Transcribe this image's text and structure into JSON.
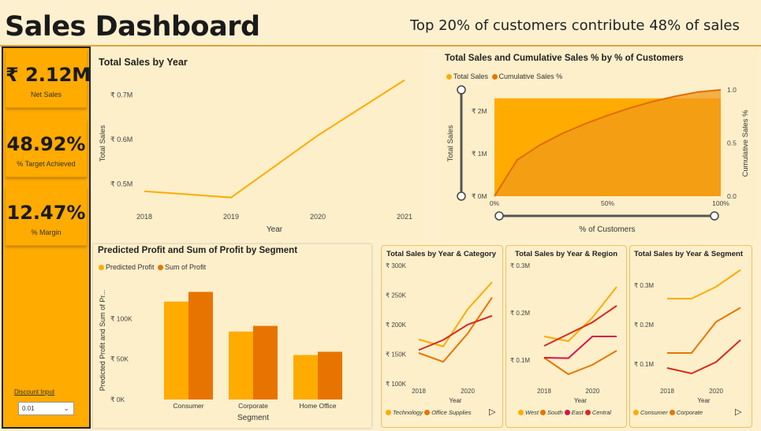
{
  "header": {
    "title": "Sales Dashboard",
    "headline": "Top 20% of customers contribute 48% of sales"
  },
  "kpis": [
    {
      "value": "₹ 2.12M",
      "label": "Net Sales"
    },
    {
      "value": "48.92%",
      "label": "% Target Achieved"
    },
    {
      "value": "12.47%",
      "label": "% Margin"
    }
  ],
  "filter": {
    "label": "Discount Input",
    "value": "0.01",
    "icon": "chevron-down-icon"
  },
  "colors": {
    "primary": "#ffab00",
    "secondary": "#e87400",
    "red": "#d62a20",
    "crimson": "#d6144a",
    "background": "#fdf0cf"
  },
  "chart_data": [
    {
      "id": "sales_by_year",
      "type": "line",
      "title": "Total Sales by Year",
      "xlabel": "Year",
      "ylabel": "Total Sales",
      "x": [
        "2018",
        "2019",
        "2020",
        "2021"
      ],
      "x_ticks": [
        "2018",
        "2019",
        "2020",
        "2021"
      ],
      "y_ticks": [
        "₹ 0.5M",
        "₹ 0.6M",
        "₹ 0.7M"
      ],
      "y_tick_values": [
        0.5,
        0.6,
        0.7
      ],
      "ylim": [
        0.45,
        0.75
      ],
      "series": [
        {
          "values": [
            0.484,
            0.47,
            0.609,
            0.733
          ]
        }
      ],
      "grid": false
    },
    {
      "id": "pareto",
      "type": "area",
      "title": "Total Sales and Cumulative Sales % by % of Customers",
      "xlabel": "% of Customers",
      "ylabel": "Total Sales",
      "y2label": "Cumulative Sales %",
      "x_ticks": [
        "0%",
        "50%",
        "100%"
      ],
      "y_ticks": [
        "₹ 0M",
        "₹ 1M",
        "₹ 2M"
      ],
      "y_tick_values": [
        0,
        1,
        2
      ],
      "y2_ticks": [
        "0.0",
        "0.5",
        "1.0"
      ],
      "ylim": [
        0,
        2.5
      ],
      "y2lim": [
        0,
        1
      ],
      "series": [
        {
          "name": "Total Sales",
          "x": [
            0,
            100
          ],
          "values": [
            2.3,
            2.3
          ]
        },
        {
          "name": "Cumulative Sales %",
          "x": [
            0,
            10,
            20,
            30,
            40,
            50,
            60,
            70,
            80,
            90,
            100
          ],
          "values": [
            0,
            0.34,
            0.48,
            0.59,
            0.68,
            0.76,
            0.83,
            0.89,
            0.94,
            0.98,
            1.0
          ]
        }
      ],
      "legend": "top-left"
    },
    {
      "id": "profit_by_segment",
      "type": "bar",
      "title": "Predicted Profit and Sum of Profit by Segment",
      "xlabel": "Segment",
      "ylabel": "Predicted Profit and Sum of Pr...",
      "categories": [
        "Consumer",
        "Corporate",
        "Home Office"
      ],
      "y_ticks": [
        "₹ 0K",
        "₹ 50K",
        "₹ 100K"
      ],
      "y_tick_values": [
        0,
        50,
        100
      ],
      "ylim": [
        0,
        150
      ],
      "series": [
        {
          "name": "Predicted Profit",
          "values": [
            121,
            84,
            55
          ]
        },
        {
          "name": "Sum of Profit",
          "values": [
            133,
            91,
            59
          ]
        }
      ],
      "legend": "top-left"
    },
    {
      "id": "sales_by_category",
      "type": "line",
      "title": "Total Sales by Year & Category",
      "xlabel": "Year",
      "x": [
        2018,
        2019,
        2020,
        2021
      ],
      "x_ticks": [
        "2018",
        "2020"
      ],
      "x_tick_values": [
        2018,
        2020
      ],
      "y_ticks": [
        "₹ 100K",
        "₹ 150K",
        "₹ 200K",
        "₹ 250K",
        "₹ 300K"
      ],
      "y_tick_values": [
        100,
        150,
        200,
        250,
        300
      ],
      "ylim": [
        100,
        300
      ],
      "series": [
        {
          "name": "Technology",
          "values": [
            175,
            163,
            226,
            272
          ]
        },
        {
          "name": "Office Supplies",
          "values": [
            152,
            137,
            185,
            246
          ]
        },
        {
          "name": "",
          "values": [
            157,
            174,
            200,
            215
          ]
        }
      ],
      "legend": "bottom"
    },
    {
      "id": "sales_by_region",
      "type": "line",
      "title": "Total Sales by Year & Region",
      "xlabel": "Year",
      "x": [
        2018,
        2019,
        2020,
        2021
      ],
      "x_ticks": [
        "2018",
        "2020"
      ],
      "x_tick_values": [
        2018,
        2020
      ],
      "y_ticks": [
        "₹ 0.1M",
        "₹ 0.2M",
        "₹ 0.3M"
      ],
      "y_tick_values": [
        0.1,
        0.2,
        0.3
      ],
      "ylim": [
        0.05,
        0.3
      ],
      "series": [
        {
          "name": "West",
          "values": [
            0.15,
            0.14,
            0.19,
            0.255
          ]
        },
        {
          "name": "South",
          "values": [
            0.105,
            0.07,
            0.09,
            0.12
          ]
        },
        {
          "name": "East",
          "values": [
            0.105,
            0.104,
            0.15,
            0.15
          ]
        },
        {
          "name": "Central",
          "values": [
            0.13,
            0.155,
            0.18,
            0.215
          ]
        }
      ],
      "legend": "bottom"
    },
    {
      "id": "sales_by_segment",
      "type": "line",
      "title": "Total Sales by Year & Segment",
      "xlabel": "Year",
      "x": [
        2018,
        2019,
        2020,
        2021
      ],
      "x_ticks": [
        "2018",
        "2020"
      ],
      "x_tick_values": [
        2018,
        2020
      ],
      "y_ticks": [
        "₹ 0.1M",
        "₹ 0.2M",
        "₹ 0.3M"
      ],
      "y_tick_values": [
        0.1,
        0.2,
        0.3
      ],
      "ylim": [
        0.05,
        0.35
      ],
      "series": [
        {
          "name": "Consumer",
          "values": [
            0.266,
            0.266,
            0.296,
            0.339
          ]
        },
        {
          "name": "Corporate",
          "values": [
            0.128,
            0.128,
            0.207,
            0.243
          ]
        },
        {
          "name": "",
          "values": [
            0.09,
            0.076,
            0.105,
            0.161
          ]
        }
      ],
      "legend": "bottom"
    }
  ]
}
